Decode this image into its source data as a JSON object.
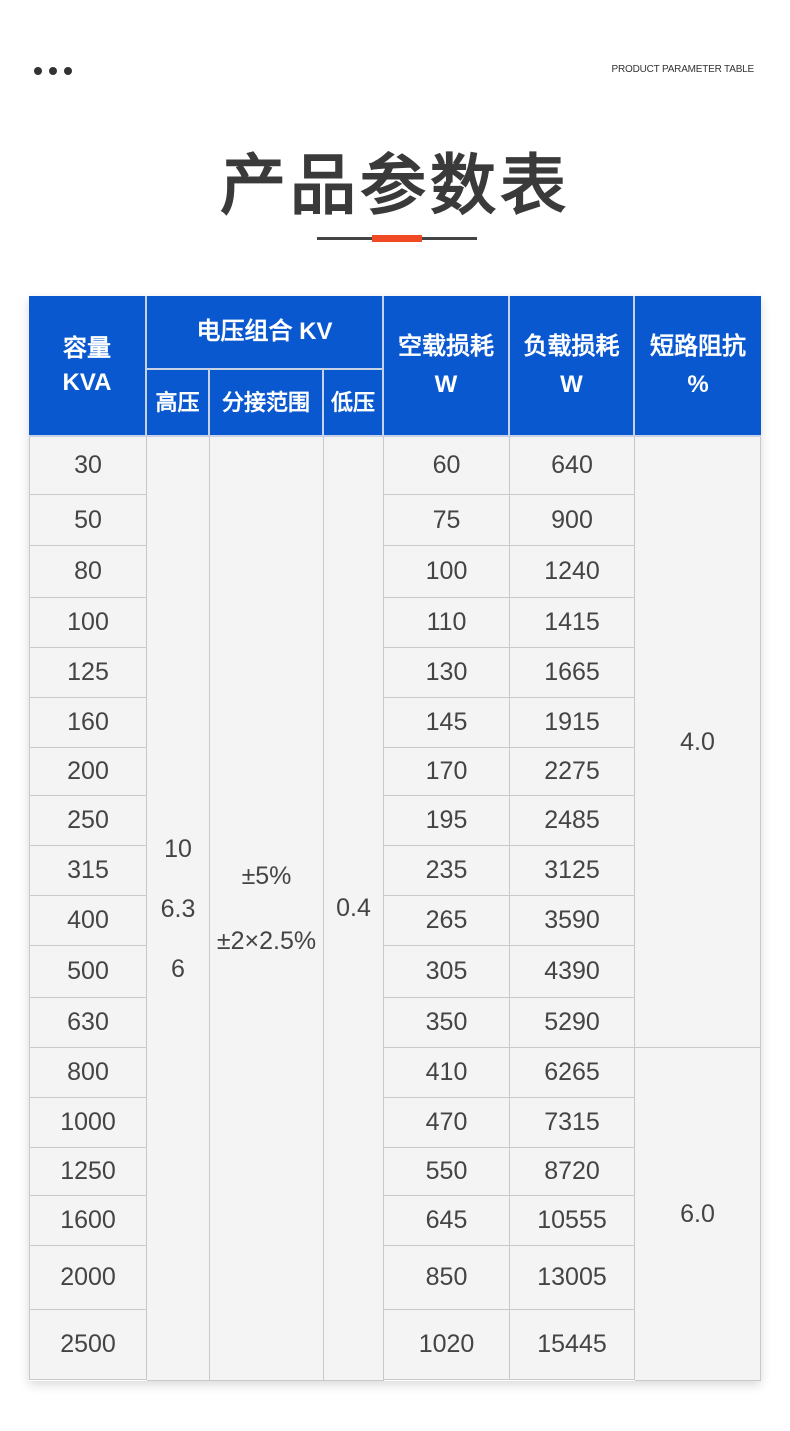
{
  "header": {
    "subtitle": "PRODUCT PARAMETER TABLE",
    "title": "产品参数表",
    "colors": {
      "header_bg": "#0a58d0",
      "accent": "#f04a25"
    }
  },
  "table": {
    "columns": {
      "capacity": [
        "容量",
        "KVA"
      ],
      "voltage_group": "电压组合 KV",
      "high_voltage": "高压",
      "tap_range": "分接范围",
      "low_voltage": "低压",
      "no_load_loss": [
        "空载损耗",
        "W"
      ],
      "load_loss": [
        "负载损耗",
        "W"
      ],
      "impedance": [
        "短路阻抗",
        "%"
      ]
    },
    "high_voltage_values": [
      "10",
      "6.3",
      "6"
    ],
    "tap_range_values": [
      "±5%",
      "±2×2.5%"
    ],
    "low_voltage_value": "0.4",
    "impedance_values": [
      "4.0",
      "6.0"
    ],
    "rows": [
      {
        "capacity": "30",
        "no_load": "60",
        "load": "640"
      },
      {
        "capacity": "50",
        "no_load": "75",
        "load": "900"
      },
      {
        "capacity": "80",
        "no_load": "100",
        "load": "1240"
      },
      {
        "capacity": "100",
        "no_load": "110",
        "load": "1415"
      },
      {
        "capacity": "125",
        "no_load": "130",
        "load": "1665"
      },
      {
        "capacity": "160",
        "no_load": "145",
        "load": "1915"
      },
      {
        "capacity": "200",
        "no_load": "170",
        "load": "2275"
      },
      {
        "capacity": "250",
        "no_load": "195",
        "load": "2485"
      },
      {
        "capacity": "315",
        "no_load": "235",
        "load": "3125"
      },
      {
        "capacity": "400",
        "no_load": "265",
        "load": "3590"
      },
      {
        "capacity": "500",
        "no_load": "305",
        "load": "4390"
      },
      {
        "capacity": "630",
        "no_load": "350",
        "load": "5290"
      },
      {
        "capacity": "800",
        "no_load": "410",
        "load": "6265"
      },
      {
        "capacity": "1000",
        "no_load": "470",
        "load": "7315"
      },
      {
        "capacity": "1250",
        "no_load": "550",
        "load": "8720"
      },
      {
        "capacity": "1600",
        "no_load": "645",
        "load": "10555"
      },
      {
        "capacity": "2000",
        "no_load": "850",
        "load": "13005"
      },
      {
        "capacity": "2500",
        "no_load": "1020",
        "load": "15445"
      }
    ]
  }
}
